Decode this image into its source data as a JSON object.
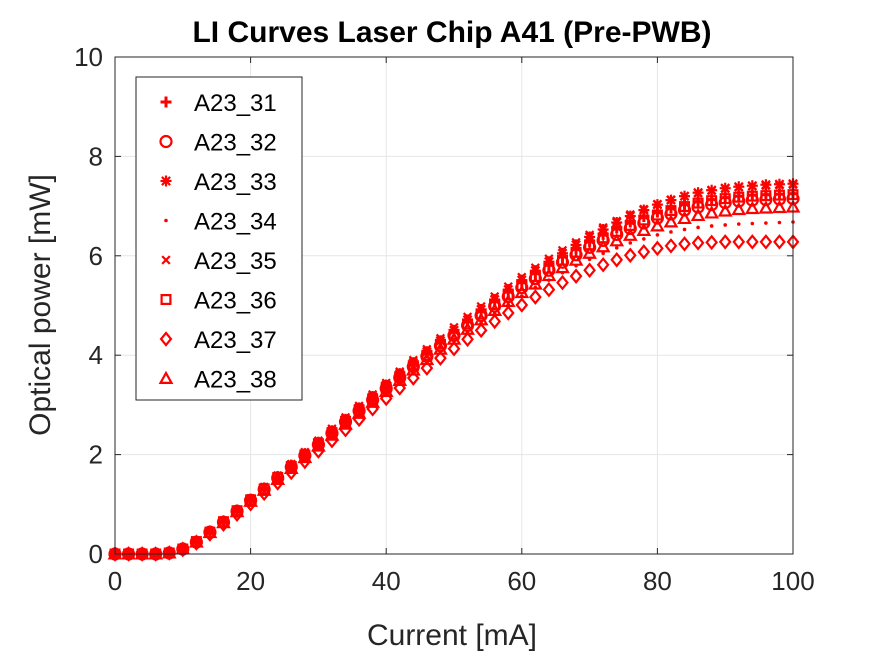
{
  "chart_data": {
    "type": "scatter",
    "title": "LI Curves Laser Chip A41 (Pre-PWB)",
    "xlabel": "Current [mA]",
    "ylabel": "Optical power [mW]",
    "xlim": [
      0,
      100
    ],
    "ylim": [
      0,
      10
    ],
    "xticks": [
      "0",
      "20",
      "40",
      "60",
      "80",
      "100"
    ],
    "yticks": [
      "0",
      "2",
      "4",
      "6",
      "8",
      "10"
    ],
    "grid": true,
    "legend_position": "top-left",
    "marker_color": "#ff0000",
    "x": [
      0,
      2,
      4,
      6,
      8,
      10,
      12,
      14,
      16,
      18,
      20,
      22,
      24,
      26,
      28,
      30,
      32,
      34,
      36,
      38,
      40,
      42,
      44,
      46,
      48,
      50,
      52,
      54,
      56,
      58,
      60,
      62,
      64,
      66,
      68,
      70,
      72,
      74,
      76,
      78,
      80,
      82,
      84,
      86,
      88,
      90,
      92,
      94,
      96,
      98,
      100
    ],
    "series": [
      {
        "name": "A23_31",
        "marker": "plus",
        "values": [
          0,
          0,
          0,
          0,
          0.02,
          0.1,
          0.25,
          0.45,
          0.66,
          0.88,
          1.1,
          1.32,
          1.55,
          1.78,
          2.01,
          2.24,
          2.47,
          2.7,
          2.93,
          3.16,
          3.39,
          3.61,
          3.83,
          4.05,
          4.26,
          4.47,
          4.68,
          4.88,
          5.08,
          5.27,
          5.46,
          5.64,
          5.81,
          5.98,
          6.14,
          6.29,
          6.43,
          6.56,
          6.68,
          6.79,
          6.88,
          6.96,
          7.03,
          7.09,
          7.13,
          7.17,
          7.2,
          7.22,
          7.23,
          7.24,
          7.25
        ]
      },
      {
        "name": "A23_32",
        "marker": "circle",
        "values": [
          0,
          0,
          0,
          0,
          0.02,
          0.1,
          0.24,
          0.44,
          0.64,
          0.86,
          1.08,
          1.3,
          1.53,
          1.75,
          1.98,
          2.2,
          2.43,
          2.66,
          2.88,
          3.1,
          3.33,
          3.55,
          3.77,
          3.98,
          4.19,
          4.4,
          4.6,
          4.8,
          4.99,
          5.18,
          5.36,
          5.54,
          5.71,
          5.87,
          6.02,
          6.17,
          6.31,
          6.43,
          6.55,
          6.66,
          6.76,
          6.84,
          6.92,
          6.98,
          7.03,
          7.07,
          7.1,
          7.12,
          7.13,
          7.14,
          7.15
        ]
      },
      {
        "name": "A23_33",
        "marker": "star",
        "values": [
          0,
          0,
          0,
          0,
          0.02,
          0.1,
          0.25,
          0.45,
          0.66,
          0.88,
          1.1,
          1.33,
          1.56,
          1.79,
          2.02,
          2.25,
          2.48,
          2.71,
          2.94,
          3.17,
          3.4,
          3.63,
          3.85,
          4.07,
          4.29,
          4.5,
          4.71,
          4.92,
          5.12,
          5.32,
          5.51,
          5.7,
          5.88,
          6.05,
          6.22,
          6.38,
          6.53,
          6.67,
          6.8,
          6.92,
          7.03,
          7.12,
          7.2,
          7.27,
          7.32,
          7.36,
          7.39,
          7.41,
          7.43,
          7.44,
          7.45
        ]
      },
      {
        "name": "A23_34",
        "marker": "dot",
        "values": [
          0,
          0,
          0,
          0,
          0.02,
          0.09,
          0.23,
          0.42,
          0.62,
          0.83,
          1.04,
          1.26,
          1.48,
          1.7,
          1.92,
          2.14,
          2.36,
          2.58,
          2.8,
          3.02,
          3.24,
          3.45,
          3.66,
          3.87,
          4.07,
          4.27,
          4.47,
          4.66,
          4.84,
          5.02,
          5.19,
          5.36,
          5.51,
          5.66,
          5.8,
          5.93,
          6.05,
          6.16,
          6.26,
          6.34,
          6.42,
          6.48,
          6.53,
          6.57,
          6.6,
          6.62,
          6.64,
          6.65,
          6.66,
          6.67,
          6.68
        ]
      },
      {
        "name": "A23_35",
        "marker": "x",
        "values": [
          0,
          0,
          0,
          0,
          0.02,
          0.1,
          0.26,
          0.46,
          0.67,
          0.89,
          1.12,
          1.35,
          1.58,
          1.81,
          2.05,
          2.28,
          2.52,
          2.75,
          2.98,
          3.21,
          3.44,
          3.67,
          3.9,
          4.12,
          4.34,
          4.56,
          4.77,
          4.98,
          5.18,
          5.38,
          5.57,
          5.76,
          5.94,
          6.11,
          6.27,
          6.42,
          6.57,
          6.7,
          6.83,
          6.94,
          7.04,
          7.13,
          7.2,
          7.26,
          7.31,
          7.35,
          7.38,
          7.4,
          7.41,
          7.42,
          7.43
        ]
      },
      {
        "name": "A23_36",
        "marker": "square",
        "values": [
          0,
          0,
          0,
          0,
          0.02,
          0.1,
          0.25,
          0.44,
          0.65,
          0.87,
          1.09,
          1.31,
          1.54,
          1.76,
          1.99,
          2.22,
          2.44,
          2.67,
          2.9,
          3.12,
          3.35,
          3.57,
          3.79,
          4,
          4.22,
          4.42,
          4.63,
          4.83,
          5.02,
          5.21,
          5.4,
          5.58,
          5.75,
          5.91,
          6.07,
          6.22,
          6.36,
          6.49,
          6.61,
          6.72,
          6.82,
          6.91,
          6.99,
          7.06,
          7.11,
          7.15,
          7.18,
          7.2,
          7.21,
          7.22,
          7.23
        ]
      },
      {
        "name": "A23_37",
        "marker": "diamond",
        "values": [
          0,
          0,
          0,
          0,
          0.02,
          0.09,
          0.22,
          0.4,
          0.6,
          0.8,
          1.01,
          1.22,
          1.43,
          1.64,
          1.86,
          2.07,
          2.28,
          2.5,
          2.71,
          2.92,
          3.13,
          3.34,
          3.54,
          3.74,
          3.94,
          4.13,
          4.32,
          4.5,
          4.68,
          4.85,
          5.01,
          5.17,
          5.32,
          5.46,
          5.59,
          5.71,
          5.82,
          5.92,
          6.01,
          6.08,
          6.15,
          6.2,
          6.24,
          6.26,
          6.27,
          6.28,
          6.28,
          6.28,
          6.28,
          6.28,
          6.28
        ]
      },
      {
        "name": "A23_38",
        "marker": "triangle",
        "values": [
          0,
          0,
          0,
          0,
          0.02,
          0.1,
          0.24,
          0.43,
          0.63,
          0.85,
          1.06,
          1.28,
          1.5,
          1.72,
          1.94,
          2.17,
          2.39,
          2.61,
          2.83,
          3.05,
          3.27,
          3.49,
          3.7,
          3.91,
          4.12,
          4.32,
          4.52,
          4.71,
          4.9,
          5.08,
          5.26,
          5.43,
          5.6,
          5.76,
          5.91,
          6.05,
          6.18,
          6.3,
          6.41,
          6.51,
          6.6,
          6.68,
          6.75,
          6.81,
          6.86,
          6.9,
          6.93,
          6.95,
          6.96,
          6.97,
          6.98
        ]
      }
    ]
  }
}
